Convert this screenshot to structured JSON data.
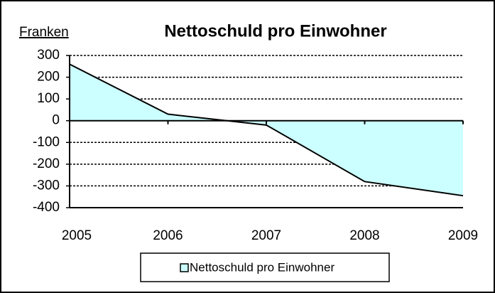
{
  "chart_data": {
    "type": "area",
    "title": "Nettoschuld pro Einwohner",
    "y_label": "Franken",
    "categories": [
      "2005",
      "2006",
      "2007",
      "2008",
      "2009"
    ],
    "series": [
      {
        "name": "Nettoschuld pro Einwohner",
        "color": "#ccffff",
        "values": [
          260,
          30,
          -20,
          -280,
          -345
        ]
      }
    ],
    "ylim": [
      -400,
      300
    ],
    "yticks": [
      300,
      200,
      100,
      0,
      -100,
      -200,
      -300,
      -400
    ],
    "grid": true,
    "legend": "bottom"
  }
}
